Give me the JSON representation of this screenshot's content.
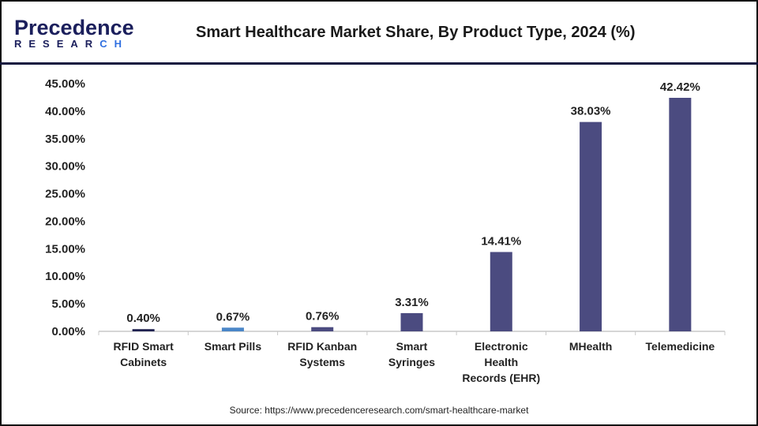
{
  "logo": {
    "line1": "Precedence",
    "line2a": "RESEAR",
    "line2b": "CH"
  },
  "title": "Smart Healthcare Market Share, By Product Type, 2024 (%)",
  "source": "Source: https://www.precedenceresearch.com/smart-healthcare-market",
  "chart_data": {
    "type": "bar",
    "title": "Smart Healthcare Market Share, By Product Type, 2024 (%)",
    "categories": [
      [
        "RFID Smart",
        "Cabinets"
      ],
      [
        "Smart Pills"
      ],
      [
        "RFID Kanban",
        "Systems"
      ],
      [
        "Smart",
        "Syringes"
      ],
      [
        "Electronic",
        "Health",
        "Records (EHR)"
      ],
      [
        "MHealth"
      ],
      [
        "Telemedicine"
      ]
    ],
    "values": [
      0.4,
      0.67,
      0.76,
      3.31,
      14.41,
      38.03,
      42.42
    ],
    "data_labels": [
      "0.40%",
      "0.67%",
      "0.76%",
      "3.31%",
      "14.41%",
      "38.03%",
      "42.42%"
    ],
    "colors": [
      "#1f2150",
      "#4a86c8",
      "#4b4b80",
      "#4b4b80",
      "#4b4b80",
      "#4b4b80",
      "#4b4b80"
    ],
    "ylim": [
      0,
      45
    ],
    "yticks": [
      "0.00%",
      "5.00%",
      "10.00%",
      "15.00%",
      "20.00%",
      "25.00%",
      "30.00%",
      "35.00%",
      "40.00%",
      "45.00%"
    ],
    "grid": false,
    "legend": "none"
  }
}
